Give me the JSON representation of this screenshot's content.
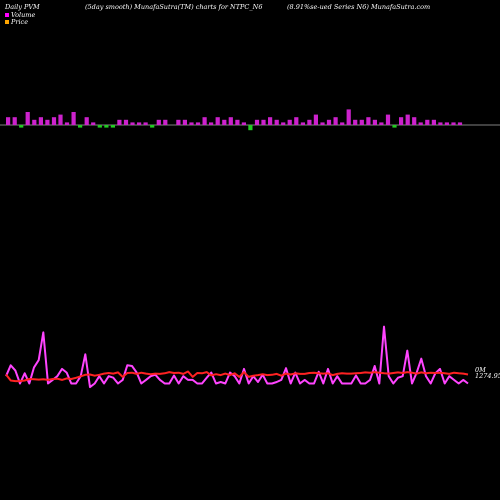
{
  "header": {
    "left": "Daily PVM",
    "center": "(5day smooth) MunafaSutra(TM) charts for NTPC_N6",
    "right": "(8.91%se-ued Series N6) MunafaSutra.com"
  },
  "legend": [
    {
      "label": "Volume",
      "color": "#ff00ff"
    },
    {
      "label": "Price",
      "color": "#ffa500"
    }
  ],
  "end_labels": {
    "top": "0M",
    "bottom": "1274.95"
  },
  "chart_data": {
    "type": "line",
    "volume_bars": {
      "colors": {
        "up": "#cc22cc",
        "down": "#22cc22"
      },
      "values": [
        3,
        3,
        -1,
        5,
        2,
        3,
        2,
        3,
        4,
        1,
        5,
        -1,
        3,
        1,
        -1,
        -1,
        -1,
        2,
        2,
        1,
        1,
        1,
        -1,
        2,
        2,
        0,
        2,
        2,
        1,
        1,
        3,
        1,
        3,
        2,
        3,
        2,
        1,
        -2,
        2,
        2,
        3,
        2,
        1,
        2,
        3,
        1,
        2,
        4,
        1,
        2,
        3,
        1,
        6,
        2,
        2,
        3,
        2,
        1,
        4,
        -1,
        3,
        4,
        3,
        1,
        2,
        2,
        1,
        1,
        1,
        1
      ]
    },
    "series": [
      {
        "name": "Volume",
        "color": "#ff44ff",
        "values": [
          6,
          7.5,
          6.8,
          5,
          6.4,
          5,
          7.2,
          8.2,
          12,
          5,
          5.5,
          6,
          7,
          6.5,
          5,
          5,
          6,
          9,
          4.5,
          5,
          6,
          5,
          6,
          5.8,
          5,
          5.5,
          7.5,
          7.4,
          6.5,
          5,
          5.5,
          6,
          6.2,
          5.5,
          5,
          5,
          6.1,
          5,
          6,
          5.5,
          5.5,
          5,
          5,
          5.8,
          6.5,
          5,
          5.2,
          5,
          6.5,
          6,
          5,
          7,
          5,
          6,
          5.2,
          6.2,
          5,
          5,
          5.2,
          5.5,
          7.1,
          5,
          6.5,
          5,
          5.5,
          5,
          5,
          6.6,
          5,
          7,
          5,
          6,
          5,
          5,
          5,
          6.1,
          5,
          5,
          5.5,
          7.4,
          5,
          12.8,
          6,
          5,
          5.8,
          6,
          9.5,
          5,
          6.5,
          8.4,
          6,
          5,
          6.4,
          7,
          5,
          6,
          5.5,
          5,
          5.5,
          5
        ]
      },
      {
        "name": "Price",
        "color": "#ff2222",
        "values": [
          1276,
          1274,
          1273.8,
          1273.8,
          1274,
          1274.5,
          1274.4,
          1274.3,
          1274.4,
          1274.2,
          1274.5,
          1274.6,
          1274.2,
          1274.7,
          1274.5,
          1274.9,
          1275.4,
          1275.9,
          1276.0,
          1275.6,
          1275.9,
          1276.3,
          1276.5,
          1276.3,
          1276.7,
          1275.2,
          1276.5,
          1276.6,
          1276.2,
          1276.6,
          1276.3,
          1276.1,
          1276.3,
          1276.2,
          1276.4,
          1276.8,
          1276.5,
          1276.6,
          1276.2,
          1277,
          1275.2,
          1276.5,
          1276.4,
          1276.8,
          1275.7,
          1276.1,
          1275.8,
          1276.3,
          1275.8,
          1276.4,
          1275.2,
          1276.8,
          1275.2,
          1275.6,
          1275.8,
          1276.1,
          1275.8,
          1275.9,
          1276.2,
          1275.6,
          1276.3,
          1276.0,
          1276.4,
          1276.2,
          1276.2,
          1276.5,
          1276.6,
          1276.4,
          1276.3,
          1276.4,
          1275.8,
          1276.2,
          1276.4,
          1276.3,
          1276.3,
          1276.4,
          1276.5,
          1276.7,
          1276.6,
          1276.8,
          1276.6,
          1276.4,
          1276.3,
          1276.5,
          1276.7,
          1276.5,
          1276.8,
          1276.6,
          1276.3,
          1276.7,
          1276.4,
          1276.6,
          1276.5,
          1276.6,
          1276.4,
          1276.2,
          1276.6,
          1276.4,
          1276.3,
          1276.0
        ]
      }
    ]
  }
}
